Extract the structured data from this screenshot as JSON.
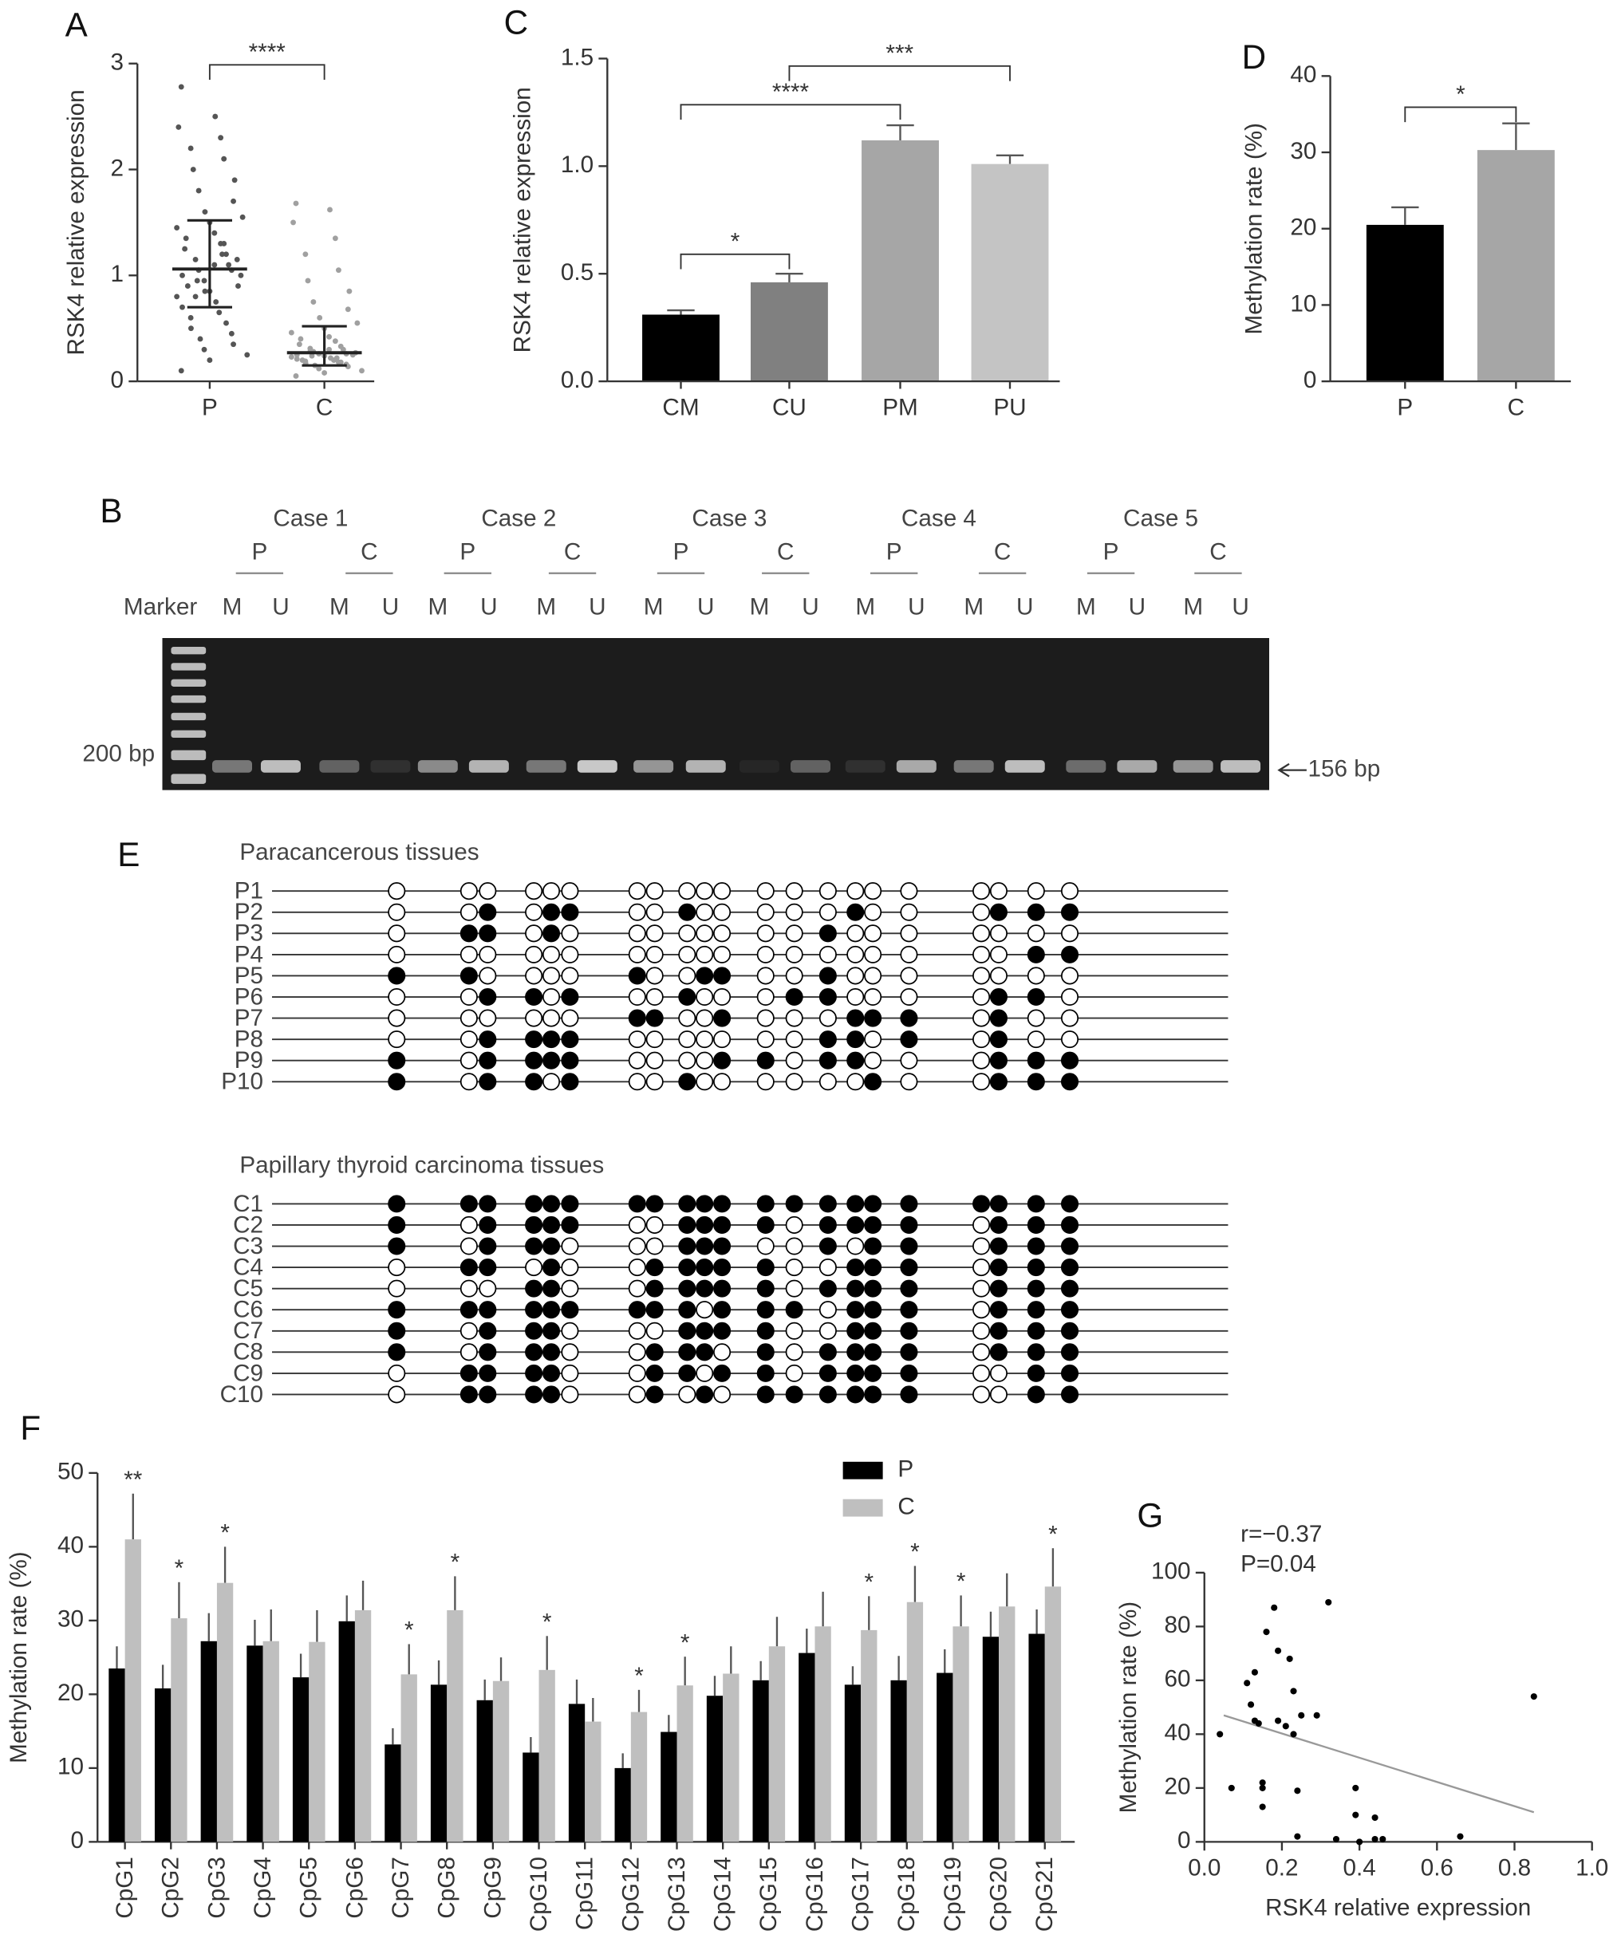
{
  "chart_data": [
    {
      "type": "strip",
      "panel": "A",
      "y_label": "RSK4 relative expression",
      "categories": [
        "P",
        "C"
      ],
      "values": [
        [
          2.78,
          2.5,
          2.4,
          2.3,
          2.2,
          2.1,
          2.0,
          1.9,
          1.8,
          1.7,
          1.6,
          1.55,
          1.5,
          1.45,
          1.4,
          1.35,
          1.3,
          1.25,
          1.2,
          1.15,
          1.1,
          1.05,
          1.0,
          0.95,
          0.9,
          0.85,
          0.8,
          0.75,
          0.7,
          0.65,
          0.6,
          0.55,
          0.5,
          0.45,
          0.4,
          0.35,
          0.3,
          0.25,
          0.2,
          0.1,
          1.1,
          1.0,
          1.2,
          0.9,
          1.3,
          0.8,
          1.05,
          0.95,
          1.15,
          0.85
        ],
        [
          1.68,
          1.62,
          1.5,
          1.35,
          1.2,
          1.05,
          0.95,
          0.85,
          0.75,
          0.68,
          0.6,
          0.55,
          0.5,
          0.46,
          0.42,
          0.4,
          0.38,
          0.35,
          0.33,
          0.31,
          0.3,
          0.28,
          0.27,
          0.26,
          0.25,
          0.24,
          0.23,
          0.22,
          0.21,
          0.2,
          0.19,
          0.18,
          0.17,
          0.16,
          0.15,
          0.14,
          0.12,
          0.1,
          0.08,
          0.05,
          0.3,
          0.25,
          0.22,
          0.2,
          0.18,
          0.28,
          0.26,
          0.24
        ]
      ],
      "colors": [
        "#555555",
        "#a0a0a0"
      ],
      "error_bars": {
        "mean": [
          1.06,
          0.27
        ],
        "lower": [
          0.7,
          0.15
        ],
        "upper": [
          1.52,
          0.52
        ]
      },
      "significance": [
        {
          "from": "P",
          "to": "C",
          "label": "****"
        }
      ],
      "ylim": [
        0,
        3
      ],
      "yticks": [
        0,
        1,
        2,
        3
      ]
    },
    {
      "type": "bar",
      "panel": "C",
      "y_label": "RSK4 relative expression",
      "categories": [
        "CM",
        "CU",
        "PM",
        "PU"
      ],
      "values": [
        0.31,
        0.46,
        1.12,
        1.01
      ],
      "errors": [
        0.02,
        0.04,
        0.07,
        0.04
      ],
      "colors": [
        "#000000",
        "#808080",
        "#a6a6a6",
        "#c4c4c4"
      ],
      "significance": [
        {
          "from": "CM",
          "to": "CU",
          "label": "*"
        },
        {
          "from": "CM",
          "to": "PM",
          "label": "****"
        },
        {
          "from": "CU",
          "to": "PU",
          "label": "***"
        }
      ],
      "ylim": [
        0,
        1.5
      ],
      "yticks": [
        {
          "value": 0,
          "label": "0.0"
        },
        0.5,
        {
          "value": 1,
          "label": "1.0"
        },
        1.5
      ]
    },
    {
      "type": "bar",
      "panel": "D",
      "y_label": "Methylation rate (%)",
      "categories": [
        "P",
        "C"
      ],
      "values": [
        20.5,
        30.3
      ],
      "errors": [
        2.3,
        3.5
      ],
      "colors": [
        "#000000",
        "#a6a6a6"
      ],
      "significance": [
        {
          "from": "P",
          "to": "C",
          "label": "*"
        }
      ],
      "ylim": [
        0,
        40
      ],
      "yticks": [
        0,
        10,
        20,
        30,
        40
      ]
    },
    {
      "type": "grouped_bar",
      "panel": "F",
      "y_label": "Methylation rate (%)",
      "categories": [
        "CpG1",
        "CpG2",
        "CpG3",
        "CpG4",
        "CpG5",
        "CpG6",
        "CpG7",
        "CpG8",
        "CpG9",
        "CpG10",
        "CpG11",
        "CpG12",
        "CpG13",
        "CpG14",
        "CpG15",
        "CpG16",
        "CpG17",
        "CpG18",
        "CpG19",
        "CpG20",
        "CpG21"
      ],
      "series": [
        {
          "name": "P",
          "color": "#000000",
          "values": [
            23.5,
            20.8,
            27.2,
            26.6,
            22.3,
            29.9,
            13.2,
            21.3,
            19.2,
            12.1,
            18.7,
            10.0,
            14.9,
            19.8,
            21.9,
            25.6,
            21.3,
            21.9,
            22.9,
            27.8,
            28.2
          ],
          "errors": [
            3,
            3.2,
            3.8,
            3.5,
            3.2,
            3.5,
            2.2,
            3.3,
            2.8,
            2.1,
            3.3,
            2.0,
            2.3,
            2.7,
            2.6,
            3.3,
            2.5,
            3.3,
            3.2,
            3.4,
            3.3
          ]
        },
        {
          "name": "C",
          "color": "#bfbfbf",
          "values": [
            41,
            30.3,
            35.1,
            27.2,
            27.1,
            31.4,
            22.7,
            31.4,
            21.8,
            23.3,
            16.3,
            17.6,
            21.2,
            22.8,
            26.5,
            29.2,
            28.7,
            32.5,
            29.2,
            31.9,
            34.6
          ],
          "errors": [
            6.2,
            4.9,
            4.9,
            4.3,
            4.3,
            4.0,
            4.1,
            4.6,
            3.2,
            4.6,
            3.2,
            3.0,
            3.9,
            3.7,
            4.0,
            4.7,
            4.6,
            4.9,
            4.2,
            4.5,
            5.2
          ]
        }
      ],
      "annotations": [
        "**",
        "*",
        "*",
        null,
        null,
        null,
        "*",
        "*",
        null,
        "*",
        null,
        "*",
        "*",
        null,
        null,
        null,
        "*",
        "*",
        "*",
        null,
        "*"
      ],
      "ylim": [
        0,
        50
      ],
      "yticks": [
        0,
        10,
        20,
        30,
        40,
        50
      ],
      "legend": "top-right"
    },
    {
      "type": "scatter",
      "panel": "G",
      "x_label": "RSK4 relative expression",
      "y_label": "Methylation rate (%)",
      "annotations": [
        "r=−0.37",
        "P=0.04"
      ],
      "x": [
        0.04,
        0.07,
        0.11,
        0.12,
        0.13,
        0.13,
        0.14,
        0.15,
        0.15,
        0.15,
        0.16,
        0.18,
        0.19,
        0.19,
        0.21,
        0.22,
        0.23,
        0.23,
        0.24,
        0.24,
        0.25,
        0.29,
        0.32,
        0.34,
        0.39,
        0.39,
        0.4,
        0.44,
        0.44,
        0.46,
        0.66,
        0.85
      ],
      "y": [
        40,
        20,
        59,
        51,
        63,
        45,
        44,
        22,
        20,
        13,
        78,
        87,
        71,
        45,
        43,
        68,
        56,
        40,
        19,
        2,
        47,
        47,
        89,
        1,
        10,
        20,
        0,
        9,
        1,
        1,
        2,
        54
      ],
      "color": "#000000",
      "trendline": {
        "x": [
          0.05,
          0.85
        ],
        "y": [
          47,
          11
        ],
        "color": "#999999"
      },
      "xlim": [
        0,
        1
      ],
      "xticks": [
        {
          "value": 0,
          "label": "0.0"
        },
        0.2,
        0.4,
        0.6,
        0.8,
        {
          "value": 1,
          "label": "1.0"
        }
      ],
      "ylim": [
        0,
        100
      ],
      "yticks": [
        0,
        20,
        40,
        60,
        80,
        100
      ]
    }
  ],
  "gel": {
    "panel": "B",
    "cases": [
      "Case 1",
      "Case 2",
      "Case 3",
      "Case 4",
      "Case 5"
    ],
    "groups": [
      "P",
      "C",
      "P",
      "C",
      "P",
      "C",
      "P",
      "C",
      "P",
      "C"
    ],
    "lanes": [
      "M",
      "U",
      "M",
      "U",
      "M",
      "U",
      "M",
      "U",
      "M",
      "U",
      "M",
      "U",
      "M",
      "U",
      "M",
      "U",
      "M",
      "U",
      "M",
      "U"
    ],
    "marker": "Marker",
    "size_marker": "200 bp",
    "product": "156 bp"
  },
  "methylation": {
    "panel": "E",
    "groups": [
      {
        "title": "Paracancerous tissues",
        "rows": [
          {
            "label": "P1",
            "pattern": "000000000000000000000"
          },
          {
            "label": "P2",
            "pattern": "001011001000001000111"
          },
          {
            "label": "P3",
            "pattern": "011010000000010000000"
          },
          {
            "label": "P4",
            "pattern": "000000000000000000011"
          },
          {
            "label": "P5",
            "pattern": "110000100110010000000"
          },
          {
            "label": "P6",
            "pattern": "001101001000110000110"
          },
          {
            "label": "P7",
            "pattern": "000000110010001110100"
          },
          {
            "label": "P8",
            "pattern": "001111000000011010100"
          },
          {
            "label": "P9",
            "pattern": "101111000011011000111"
          },
          {
            "label": "P10",
            "pattern": "101101001000000100111"
          }
        ]
      },
      {
        "title": "Papillary thyroid carcinoma tissues",
        "rows": [
          {
            "label": "C1",
            "pattern": "111111111111111111111"
          },
          {
            "label": "C2",
            "pattern": "101111001111011110111"
          },
          {
            "label": "C3",
            "pattern": "101110001110010110111"
          },
          {
            "label": "C4",
            "pattern": "011010011111001110111"
          },
          {
            "label": "C5",
            "pattern": "000110011111011110111"
          },
          {
            "label": "C6",
            "pattern": "111111111011101110111"
          },
          {
            "label": "C7",
            "pattern": "101110001111001110111"
          },
          {
            "label": "C8",
            "pattern": "101110011101011110111"
          },
          {
            "label": "C9",
            "pattern": "011110011011011110011"
          },
          {
            "label": "C10",
            "pattern": "011110010101111110011"
          }
        ]
      }
    ]
  }
}
